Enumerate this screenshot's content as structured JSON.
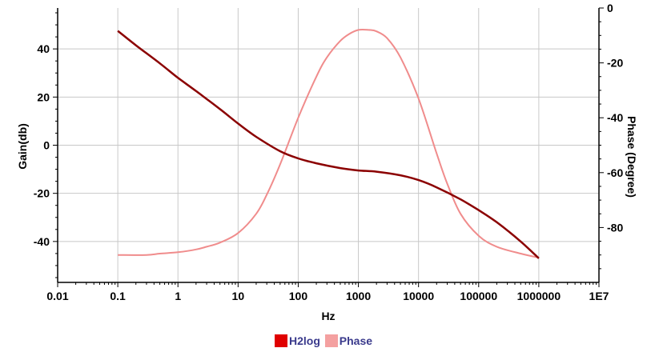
{
  "chart_data": {
    "type": "line",
    "xlabel": "Hz",
    "ylabel": "Gain(db)",
    "y2label": "Phase (Degree)",
    "x_scale": "log",
    "xlim": [
      0.01,
      10000000
    ],
    "ylim": [
      -57,
      57
    ],
    "y2lim": [
      -100,
      0
    ],
    "x_ticks": [
      0.01,
      0.1,
      1,
      10,
      100,
      1000,
      10000,
      100000,
      1000000,
      10000000
    ],
    "x_tick_labels": [
      "0.01",
      "0.1",
      "1",
      "10",
      "100",
      "1000",
      "10000",
      "100000",
      "1000000",
      "1E7"
    ],
    "y_ticks": [
      40,
      20,
      0,
      -20,
      -40
    ],
    "y_tick_labels": [
      "40",
      "20",
      "0",
      "-20",
      "-40"
    ],
    "y2_ticks": [
      0,
      -20,
      -40,
      -60,
      -80
    ],
    "y2_tick_labels": [
      "0",
      "-20",
      "-40",
      "-60",
      "-80"
    ],
    "grid": true,
    "legend_position": "bottom-center",
    "series": [
      {
        "name": "H2log",
        "axis": "left",
        "color": "#8b0000",
        "legend_color": "#e00000",
        "x": [
          0.1,
          0.2,
          0.5,
          1,
          2,
          5,
          10,
          20,
          50,
          100,
          200,
          500,
          1000,
          2000,
          5000,
          10000,
          20000,
          50000,
          100000,
          200000,
          500000,
          1000000
        ],
        "y": [
          47.5,
          41.5,
          34,
          28,
          22.5,
          15,
          9,
          3.5,
          -2.5,
          -5.5,
          -7.5,
          -9.5,
          -10.5,
          -11,
          -12.5,
          -14.5,
          -17.5,
          -22.5,
          -27,
          -32,
          -40,
          -47
        ]
      },
      {
        "name": "Phase",
        "axis": "right",
        "color": "#f08c8c",
        "legend_color": "#f4a0a0",
        "x": [
          0.1,
          0.3,
          0.5,
          1,
          2,
          3,
          5,
          10,
          20,
          30,
          50,
          100,
          200,
          300,
          500,
          700,
          1000,
          1500,
          2000,
          3000,
          5000,
          10000,
          20000,
          30000,
          50000,
          100000,
          200000,
          500000,
          1000000
        ],
        "y": [
          -90,
          -90,
          -89.5,
          -89,
          -88,
          -87,
          -85.5,
          -82,
          -75,
          -68,
          -57,
          -40,
          -25,
          -18,
          -12,
          -9.5,
          -8,
          -8,
          -8.5,
          -11,
          -18,
          -33,
          -53,
          -64,
          -75,
          -83,
          -87,
          -89.5,
          -91
        ]
      }
    ]
  }
}
